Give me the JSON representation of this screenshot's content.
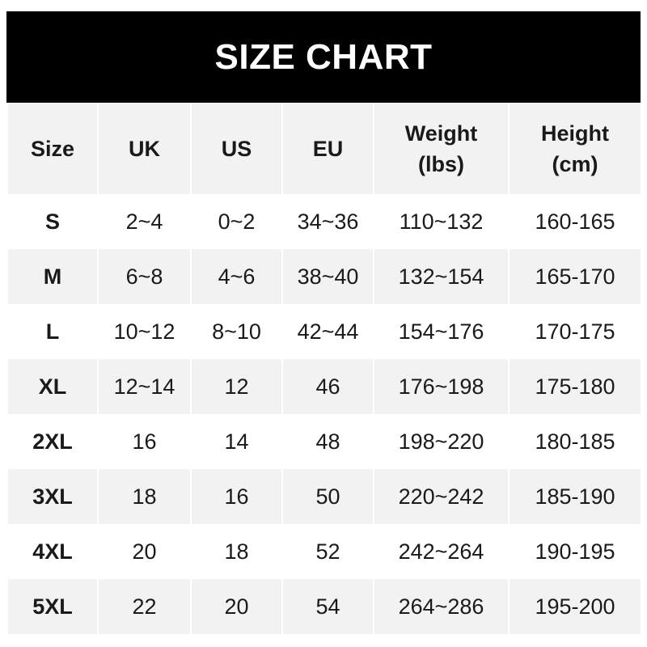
{
  "title": "SIZE CHART",
  "headers": [
    "Size",
    "UK",
    "US",
    "EU",
    "Weight\n(lbs)",
    "Height\n(cm)"
  ],
  "rows": [
    [
      "S",
      "2~4",
      "0~2",
      "34~36",
      "110~132",
      "160-165"
    ],
    [
      "M",
      "6~8",
      "4~6",
      "38~40",
      "132~154",
      "165-170"
    ],
    [
      "L",
      "10~12",
      "8~10",
      "42~44",
      "154~176",
      "170-175"
    ],
    [
      "XL",
      "12~14",
      "12",
      "46",
      "176~198",
      "175-180"
    ],
    [
      "2XL",
      "16",
      "14",
      "48",
      "198~220",
      "180-185"
    ],
    [
      "3XL",
      "18",
      "16",
      "50",
      "220~242",
      "185-190"
    ],
    [
      "4XL",
      "20",
      "18",
      "52",
      "242~264",
      "190-195"
    ],
    [
      "5XL",
      "22",
      "20",
      "54",
      "264~286",
      "195-200"
    ]
  ],
  "colors": {
    "banner": "#000000",
    "stripe": "#f2f2f2"
  }
}
